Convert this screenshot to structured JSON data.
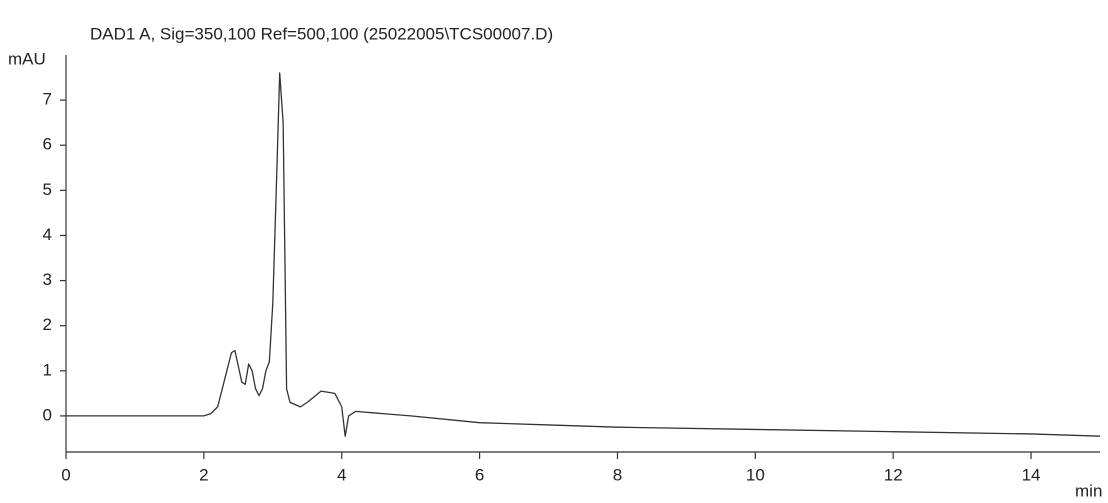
{
  "chart_data": {
    "type": "line",
    "title": "DAD1 A, Sig=350,100 Ref=500,100 (25022005\\TCS00007.D)",
    "ylabel": "mAU",
    "xlabel": "min",
    "x": [
      0,
      1,
      2,
      2.1,
      2.2,
      2.3,
      2.4,
      2.45,
      2.5,
      2.55,
      2.6,
      2.65,
      2.7,
      2.75,
      2.8,
      2.85,
      2.9,
      2.95,
      3.0,
      3.05,
      3.1,
      3.15,
      3.2,
      3.25,
      3.4,
      3.5,
      3.7,
      3.9,
      4.0,
      4.05,
      4.1,
      4.2,
      5,
      6,
      7,
      8,
      10,
      12,
      14,
      15
    ],
    "values": [
      0,
      0,
      0,
      0.05,
      0.2,
      0.8,
      1.4,
      1.45,
      1.1,
      0.75,
      0.7,
      1.15,
      1.0,
      0.6,
      0.45,
      0.6,
      1.0,
      1.2,
      2.5,
      5.0,
      7.6,
      6.5,
      0.6,
      0.3,
      0.2,
      0.3,
      0.55,
      0.5,
      0.2,
      -0.45,
      0.0,
      0.1,
      0.0,
      -0.15,
      -0.2,
      -0.25,
      -0.3,
      -0.35,
      -0.4,
      -0.45
    ],
    "color": "#333333",
    "xlim": [
      0,
      15
    ],
    "xticks": [
      0,
      2,
      4,
      6,
      8,
      10,
      12,
      14
    ],
    "ylim": [
      -0.8,
      8
    ],
    "yticks": [
      0,
      1,
      2,
      3,
      4,
      5,
      6,
      7
    ]
  }
}
